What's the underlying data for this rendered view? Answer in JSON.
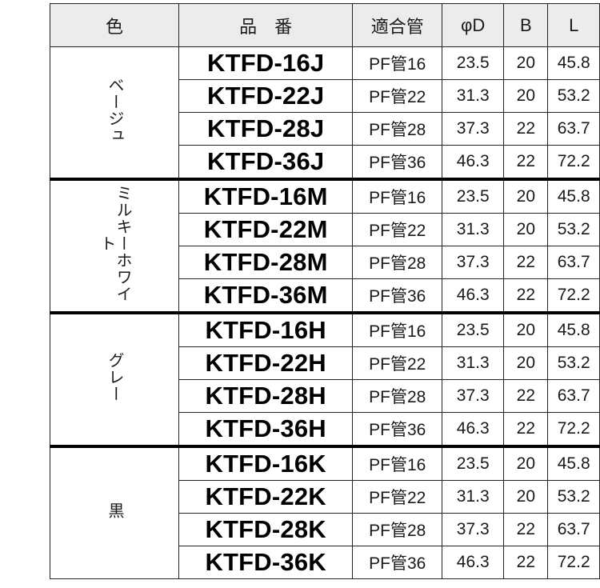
{
  "header": {
    "color": "色",
    "product": "品　番",
    "pipe": "適合管",
    "diameter": "φD",
    "b": "B",
    "l": "L"
  },
  "groups": [
    {
      "color": "ベージュ",
      "rows": [
        {
          "code": "KTFD-16J",
          "pipe": "PF管16",
          "d": "23.5",
          "b": "20",
          "l": "45.8"
        },
        {
          "code": "KTFD-22J",
          "pipe": "PF管22",
          "d": "31.3",
          "b": "20",
          "l": "53.2"
        },
        {
          "code": "KTFD-28J",
          "pipe": "PF管28",
          "d": "37.3",
          "b": "22",
          "l": "63.7"
        },
        {
          "code": "KTFD-36J",
          "pipe": "PF管36",
          "d": "46.3",
          "b": "22",
          "l": "72.2"
        }
      ]
    },
    {
      "color": "ミルキーホワイト",
      "rows": [
        {
          "code": "KTFD-16M",
          "pipe": "PF管16",
          "d": "23.5",
          "b": "20",
          "l": "45.8"
        },
        {
          "code": "KTFD-22M",
          "pipe": "PF管22",
          "d": "31.3",
          "b": "20",
          "l": "53.2"
        },
        {
          "code": "KTFD-28M",
          "pipe": "PF管28",
          "d": "37.3",
          "b": "22",
          "l": "63.7"
        },
        {
          "code": "KTFD-36M",
          "pipe": "PF管36",
          "d": "46.3",
          "b": "22",
          "l": "72.2"
        }
      ]
    },
    {
      "color": "グレー",
      "rows": [
        {
          "code": "KTFD-16H",
          "pipe": "PF管16",
          "d": "23.5",
          "b": "20",
          "l": "45.8"
        },
        {
          "code": "KTFD-22H",
          "pipe": "PF管22",
          "d": "31.3",
          "b": "20",
          "l": "53.2"
        },
        {
          "code": "KTFD-28H",
          "pipe": "PF管28",
          "d": "37.3",
          "b": "22",
          "l": "63.7"
        },
        {
          "code": "KTFD-36H",
          "pipe": "PF管36",
          "d": "46.3",
          "b": "22",
          "l": "72.2"
        }
      ]
    },
    {
      "color": "黒",
      "rows": [
        {
          "code": "KTFD-16K",
          "pipe": "PF管16",
          "d": "23.5",
          "b": "20",
          "l": "45.8"
        },
        {
          "code": "KTFD-22K",
          "pipe": "PF管22",
          "d": "31.3",
          "b": "20",
          "l": "53.2"
        },
        {
          "code": "KTFD-28K",
          "pipe": "PF管28",
          "d": "37.3",
          "b": "22",
          "l": "63.7"
        },
        {
          "code": "KTFD-36K",
          "pipe": "PF管36",
          "d": "46.3",
          "b": "22",
          "l": "72.2"
        }
      ]
    }
  ]
}
